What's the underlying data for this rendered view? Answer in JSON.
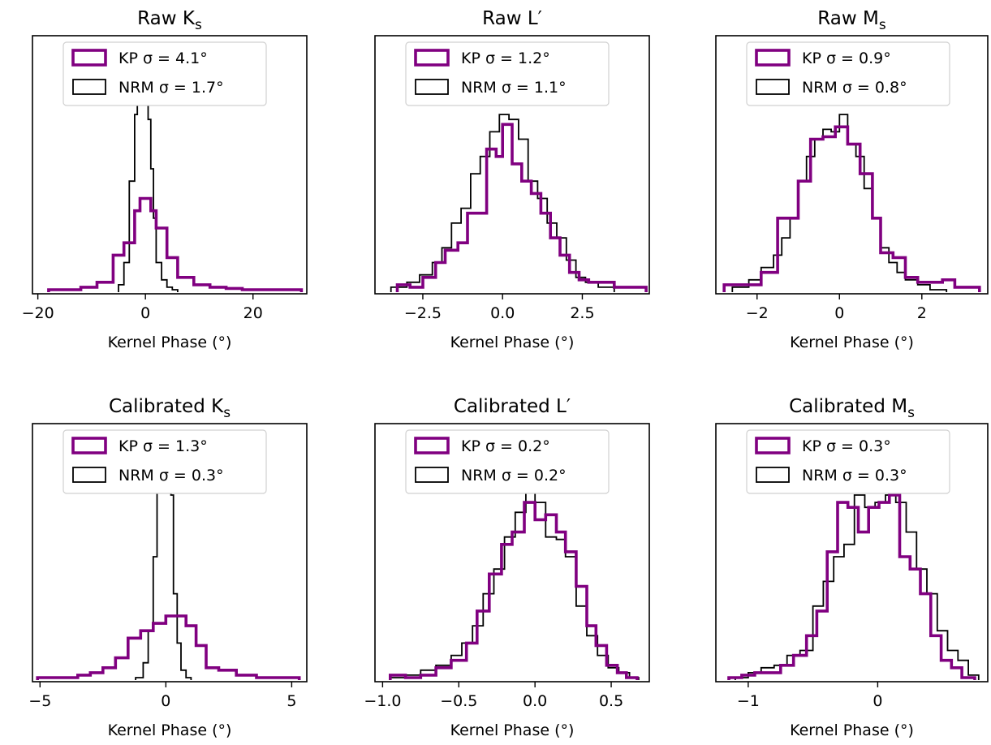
{
  "figure": {
    "colors": {
      "kp": "#800080",
      "nrm": "#000000"
    }
  },
  "chart_data": [
    {
      "type": "histogram",
      "title": "Raw K",
      "title_sub": "s",
      "title_prime": "",
      "xlabel": "Kernel Phase (°)",
      "xlim": [
        -21,
        30
      ],
      "xticks": [
        {
          "v": -20,
          "label": "−20"
        },
        {
          "v": 0,
          "label": "0"
        },
        {
          "v": 20,
          "label": "20"
        }
      ],
      "legend": [
        "KP σ = 4.1°",
        "NRM σ = 1.7°"
      ],
      "series": [
        {
          "name": "KP",
          "edges": [
            -18,
            -15,
            -12,
            -9,
            -6,
            -4,
            -2,
            -1,
            1,
            2,
            4,
            6,
            9,
            12,
            15,
            18,
            21,
            24,
            27,
            29
          ],
          "counts": [
            0.01,
            0.01,
            0.02,
            0.04,
            0.15,
            0.2,
            0.33,
            0.38,
            0.33,
            0.26,
            0.14,
            0.06,
            0.03,
            0.02,
            0.015,
            0.01,
            0.01,
            0.01,
            0.01
          ]
        },
        {
          "name": "NRM",
          "edges": [
            -5,
            -4,
            -3,
            -2,
            -1.5,
            -1,
            -0.5,
            0,
            0.5,
            1,
            1.5,
            2,
            3,
            4,
            5,
            6
          ],
          "counts": [
            0.03,
            0.12,
            0.45,
            0.72,
            0.85,
            0.95,
            1.0,
            0.85,
            0.7,
            0.5,
            0.3,
            0.12,
            0.05,
            0.02,
            0.01
          ]
        }
      ]
    },
    {
      "type": "histogram",
      "title": "Raw L",
      "title_sub": "",
      "title_prime": "′",
      "xlabel": "Kernel Phase (°)",
      "xlim": [
        -4.0,
        4.6
      ],
      "xticks": [
        {
          "v": -2.5,
          "label": "−2.5"
        },
        {
          "v": 0,
          "label": "0.0"
        },
        {
          "v": 2.5,
          "label": "2.5"
        }
      ],
      "legend": [
        "KP σ = 1.2°",
        "NRM σ = 1.1°"
      ],
      "series": [
        {
          "name": "KP",
          "edges": [
            -3.3,
            -2.9,
            -2.5,
            -2.1,
            -1.8,
            -1.4,
            -1.1,
            -0.8,
            -0.5,
            -0.2,
            0,
            0.3,
            0.6,
            0.9,
            1.2,
            1.5,
            1.8,
            2.1,
            2.4,
            2.7,
            3.1,
            3.5,
            4.5
          ],
          "counts": [
            0.03,
            0.02,
            0.06,
            0.12,
            0.17,
            0.2,
            0.32,
            0.32,
            0.58,
            0.55,
            0.68,
            0.52,
            0.45,
            0.4,
            0.32,
            0.22,
            0.15,
            0.08,
            0.05,
            0.04,
            0.04,
            0.02
          ]
        },
        {
          "name": "NRM",
          "edges": [
            -3.5,
            -3.0,
            -2.6,
            -2.2,
            -1.9,
            -1.6,
            -1.3,
            -1.0,
            -0.7,
            -0.4,
            -0.1,
            0.2,
            0.5,
            0.8,
            1.1,
            1.4,
            1.7,
            2.0,
            2.3,
            2.6,
            3.0,
            3.5
          ],
          "counts": [
            0.02,
            0.04,
            0.07,
            0.12,
            0.18,
            0.28,
            0.34,
            0.48,
            0.55,
            0.65,
            0.72,
            0.7,
            0.62,
            0.45,
            0.38,
            0.28,
            0.22,
            0.13,
            0.06,
            0.04,
            0.02
          ]
        }
      ]
    },
    {
      "type": "histogram",
      "title": "Raw M",
      "title_sub": "s",
      "title_prime": "",
      "xlabel": "Kernel Phase (°)",
      "xlim": [
        -3.0,
        3.6
      ],
      "xticks": [
        {
          "v": -2,
          "label": "−2"
        },
        {
          "v": 0,
          "label": "0"
        },
        {
          "v": 2,
          "label": "2"
        }
      ],
      "legend": [
        "KP σ = 0.9°",
        "NRM σ = 0.8°"
      ],
      "series": [
        {
          "name": "KP",
          "edges": [
            -2.8,
            -2.3,
            -1.9,
            -1.5,
            -1.3,
            -1.0,
            -0.7,
            -0.4,
            -0.1,
            0.2,
            0.5,
            0.8,
            1.0,
            1.3,
            1.6,
            1.9,
            2.2,
            2.5,
            2.8,
            3.1,
            3.4
          ],
          "counts": [
            0.03,
            0.03,
            0.08,
            0.3,
            0.3,
            0.45,
            0.62,
            0.63,
            0.67,
            0.6,
            0.48,
            0.3,
            0.16,
            0.14,
            0.06,
            0.04,
            0.04,
            0.05,
            0.02,
            0.02
          ]
        },
        {
          "name": "NRM",
          "edges": [
            -2.6,
            -2.2,
            -1.9,
            -1.6,
            -1.4,
            -1.2,
            -1.0,
            -0.8,
            -0.6,
            -0.4,
            -0.2,
            0,
            0.2,
            0.4,
            0.6,
            0.8,
            1.0,
            1.2,
            1.4,
            1.6,
            1.9,
            2.2,
            2.6
          ],
          "counts": [
            0.02,
            0.05,
            0.1,
            0.15,
            0.22,
            0.3,
            0.45,
            0.55,
            0.62,
            0.66,
            0.65,
            0.72,
            0.6,
            0.55,
            0.42,
            0.3,
            0.18,
            0.12,
            0.08,
            0.05,
            0.03,
            0.01
          ]
        }
      ]
    },
    {
      "type": "histogram",
      "title": "Calibrated K",
      "title_sub": "s",
      "title_prime": "",
      "xlabel": "Kernel Phase (°)",
      "xlim": [
        -5.3,
        5.6
      ],
      "xticks": [
        {
          "v": -5,
          "label": "−5"
        },
        {
          "v": 0,
          "label": "0"
        },
        {
          "v": 5,
          "label": "5"
        }
      ],
      "legend": [
        "KP σ = 1.3°",
        "NRM σ = 0.3°"
      ],
      "series": [
        {
          "name": "KP",
          "edges": [
            -5.1,
            -4.2,
            -3.5,
            -3.0,
            -2.5,
            -2.0,
            -1.5,
            -1.0,
            -0.5,
            0,
            0.5,
            0.8,
            1.2,
            1.6,
            2.1,
            2.8,
            3.6,
            4.4,
            5.3
          ],
          "counts": [
            0.01,
            0.01,
            0.02,
            0.03,
            0.05,
            0.09,
            0.17,
            0.2,
            0.23,
            0.26,
            0.26,
            0.22,
            0.14,
            0.05,
            0.04,
            0.02,
            0.01,
            0.01
          ]
        },
        {
          "name": "NRM",
          "edges": [
            -1.2,
            -0.9,
            -0.7,
            -0.5,
            -0.35,
            -0.2,
            -0.1,
            0,
            0.1,
            0.2,
            0.3,
            0.45,
            0.6,
            0.8,
            1.0
          ],
          "counts": [
            0.01,
            0.07,
            0.2,
            0.5,
            0.9,
            0.98,
            0.93,
            0.97,
            0.9,
            0.75,
            0.35,
            0.15,
            0.04,
            0.01
          ]
        }
      ]
    },
    {
      "type": "histogram",
      "title": "Calibrated L",
      "title_sub": "",
      "title_prime": "′",
      "xlabel": "Kernel Phase (°)",
      "xlim": [
        -1.05,
        0.75
      ],
      "xticks": [
        {
          "v": -1.0,
          "label": "−1.0"
        },
        {
          "v": -0.5,
          "label": "−0.5"
        },
        {
          "v": 0,
          "label": "0.0"
        },
        {
          "v": 0.5,
          "label": "0.5"
        }
      ],
      "legend": [
        "KP σ = 0.2°",
        "NRM σ = 0.2°"
      ],
      "series": [
        {
          "name": "KP",
          "edges": [
            -0.95,
            -0.85,
            -0.75,
            -0.65,
            -0.55,
            -0.45,
            -0.38,
            -0.3,
            -0.22,
            -0.15,
            -0.07,
            0,
            0.07,
            0.14,
            0.2,
            0.27,
            0.34,
            0.4,
            0.47,
            0.54,
            0.6,
            0.67
          ],
          "counts": [
            0.02,
            0.01,
            0.02,
            0.05,
            0.08,
            0.15,
            0.28,
            0.43,
            0.55,
            0.6,
            0.72,
            0.65,
            0.67,
            0.6,
            0.52,
            0.38,
            0.22,
            0.14,
            0.06,
            0.03,
            0.01
          ]
        },
        {
          "name": "NRM",
          "edges": [
            -0.95,
            -0.85,
            -0.75,
            -0.65,
            -0.55,
            -0.48,
            -0.41,
            -0.34,
            -0.27,
            -0.2,
            -0.13,
            -0.06,
            0,
            0.07,
            0.14,
            0.2,
            0.27,
            0.34,
            0.41,
            0.48,
            0.55,
            0.62,
            0.68
          ],
          "counts": [
            0.01,
            0.02,
            0.04,
            0.06,
            0.1,
            0.15,
            0.22,
            0.35,
            0.45,
            0.58,
            0.68,
            0.8,
            0.72,
            0.58,
            0.57,
            0.5,
            0.3,
            0.18,
            0.1,
            0.05,
            0.03,
            0.01
          ]
        }
      ]
    },
    {
      "type": "histogram",
      "title": "Calibrated M",
      "title_sub": "s",
      "title_prime": "",
      "xlabel": "Kernel Phase (°)",
      "xlim": [
        -1.25,
        0.85
      ],
      "xticks": [
        {
          "v": -1,
          "label": "−1"
        },
        {
          "v": 0,
          "label": "0"
        }
      ],
      "legend": [
        "KP σ = 0.3°",
        "NRM σ = 0.3°"
      ],
      "series": [
        {
          "name": "KP",
          "edges": [
            -1.15,
            -1.05,
            -0.95,
            -0.85,
            -0.75,
            -0.65,
            -0.55,
            -0.47,
            -0.39,
            -0.31,
            -0.23,
            -0.15,
            -0.07,
            0.01,
            0.09,
            0.17,
            0.25,
            0.33,
            0.41,
            0.49,
            0.57,
            0.65,
            0.75
          ],
          "counts": [
            0.01,
            0.02,
            0.03,
            0.03,
            0.06,
            0.1,
            0.18,
            0.28,
            0.52,
            0.72,
            0.7,
            0.6,
            0.7,
            0.72,
            0.75,
            0.5,
            0.45,
            0.35,
            0.18,
            0.08,
            0.05,
            0.01
          ]
        },
        {
          "name": "NRM",
          "edges": [
            -1.1,
            -1.0,
            -0.9,
            -0.8,
            -0.7,
            -0.6,
            -0.5,
            -0.42,
            -0.34,
            -0.26,
            -0.18,
            -0.1,
            -0.02,
            0.06,
            0.14,
            0.22,
            0.3,
            0.38,
            0.46,
            0.54,
            0.62,
            0.7,
            0.78
          ],
          "counts": [
            0.01,
            0.03,
            0.05,
            0.06,
            0.1,
            0.12,
            0.3,
            0.4,
            0.5,
            0.55,
            0.75,
            0.7,
            0.72,
            0.75,
            0.72,
            0.6,
            0.45,
            0.35,
            0.2,
            0.12,
            0.08,
            0.02
          ]
        }
      ]
    }
  ]
}
